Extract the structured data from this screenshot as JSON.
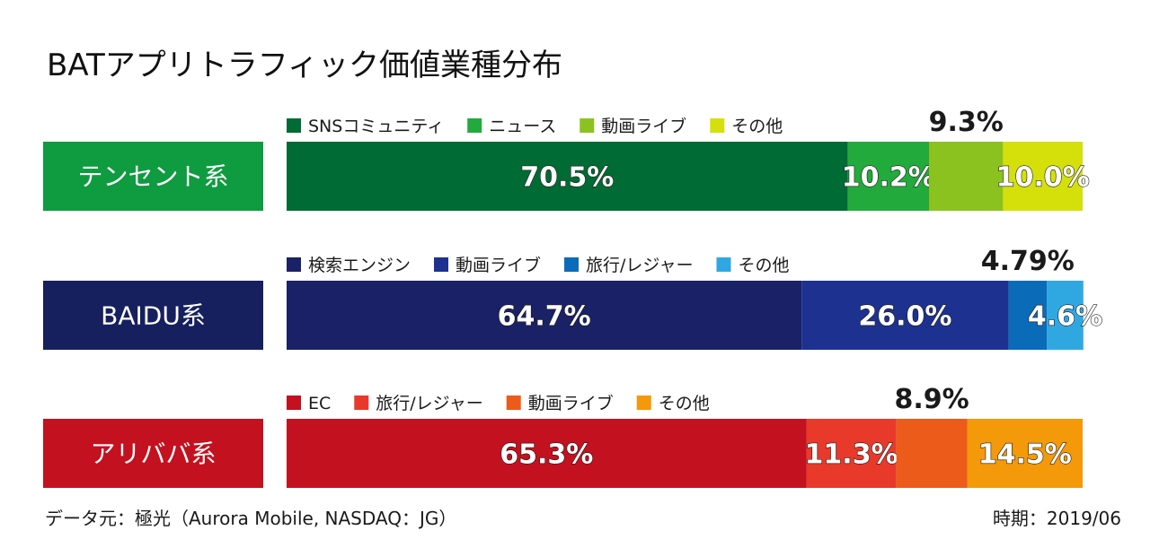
{
  "chart_data": {
    "type": "bar",
    "orientation": "horizontal",
    "stacked": true,
    "title": "BATアプリトラフィック価値業種分布",
    "xlim": [
      0,
      100
    ],
    "groups": [
      {
        "label": "テンセント系",
        "color": "#0f9b3f",
        "series": [
          {
            "name": "SNSコミュニティ",
            "value": 70.5,
            "label": "70.5%",
            "color": "#006b34"
          },
          {
            "name": "ニュース",
            "value": 10.2,
            "label": "10.2%",
            "color": "#23aa3c"
          },
          {
            "name": "動画ライブ",
            "value": 9.3,
            "label": "9.3%",
            "color": "#8cc21f"
          },
          {
            "name": "その他",
            "value": 10.0,
            "label": "10.0%",
            "color": "#d5e00b"
          }
        ]
      },
      {
        "label": "BAIDU系",
        "color": "#17205e",
        "series": [
          {
            "name": "検索エンジン",
            "value": 64.7,
            "label": "64.7%",
            "color": "#1a2166"
          },
          {
            "name": "動画ライブ",
            "value": 26.0,
            "label": "26.0%",
            "color": "#1d3190"
          },
          {
            "name": "旅行/レジャー",
            "value": 4.79,
            "label": "4.79%",
            "color": "#0a6bb8"
          },
          {
            "name": "その他",
            "value": 4.6,
            "label": "4.6%",
            "color": "#2fa8e2"
          }
        ]
      },
      {
        "label": "アリババ系",
        "color": "#c3111f",
        "series": [
          {
            "name": "EC",
            "value": 65.3,
            "label": "65.3%",
            "color": "#c3111f"
          },
          {
            "name": "旅行/レジャー",
            "value": 11.3,
            "label": "11.3%",
            "color": "#e8392b"
          },
          {
            "name": "動画ライブ",
            "value": 8.9,
            "label": "8.9%",
            "color": "#ec5b1a"
          },
          {
            "name": "その他",
            "value": 14.5,
            "label": "14.5%",
            "color": "#f3990a"
          }
        ]
      }
    ]
  },
  "footer": {
    "source": "データ元：極光（Aurora Mobile, NASDAQ：JG）",
    "period": "時期：2019/06"
  }
}
